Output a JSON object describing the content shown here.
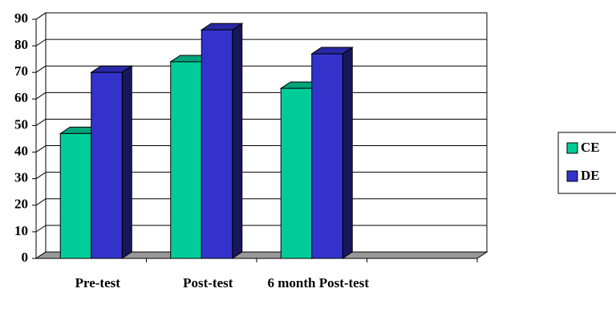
{
  "chart_data": {
    "type": "bar3d",
    "categories": [
      "Pre-test",
      "Post-test",
      "6 month Post-test",
      null
    ],
    "series": [
      {
        "name": "CE",
        "color": "#00cc99",
        "values": [
          47,
          74,
          64,
          null
        ]
      },
      {
        "name": "DE",
        "color": "#3333cc",
        "values": [
          70,
          86,
          77,
          null
        ]
      }
    ],
    "ylim": [
      0,
      90
    ],
    "yticks": [
      0,
      10,
      20,
      30,
      40,
      50,
      60,
      70,
      80,
      90
    ],
    "grid": true,
    "legend": "right"
  }
}
